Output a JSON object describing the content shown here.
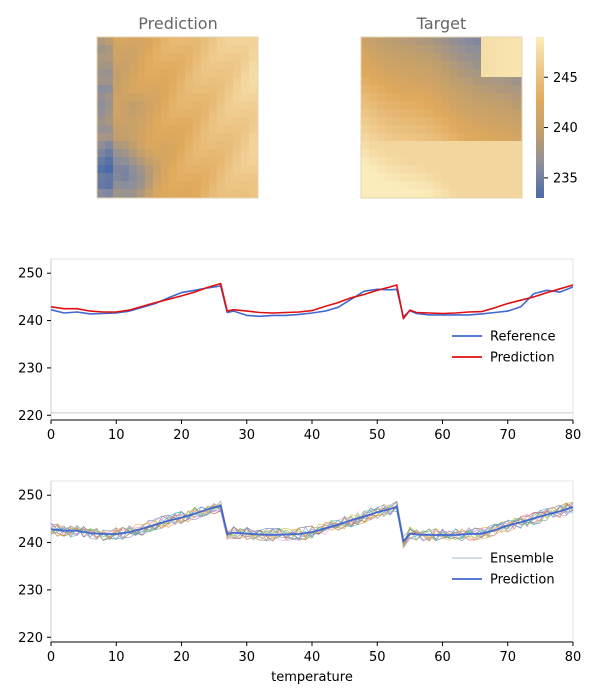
{
  "chart_data": [
    {
      "type": "heatmap",
      "title": "Prediction",
      "rows": 20,
      "cols": 20,
      "grid_dx": 8,
      "grid_dy": 8,
      "pattern": "prediction"
    },
    {
      "type": "heatmap",
      "title": "Target",
      "rows": 20,
      "cols": 20,
      "grid_dx": 8,
      "grid_dy": 8,
      "pattern": "target",
      "colorbar": {
        "vmin": 233,
        "vmax": 249,
        "ticks": [
          235,
          240,
          245
        ],
        "colors": [
          "#4a6aa8",
          "#8a8d9c",
          "#bf9e6e",
          "#e0a95c",
          "#eec88a",
          "#fbecbc"
        ]
      }
    },
    {
      "type": "line",
      "xlabel": "",
      "xlim": [
        0,
        80
      ],
      "ylim": [
        219,
        253
      ],
      "xticks": [
        0,
        10,
        20,
        30,
        40,
        50,
        60,
        70,
        80
      ],
      "yticks": [
        220,
        230,
        240,
        250
      ],
      "hline": 220.5,
      "legend_position": "lower-right",
      "series": [
        {
          "name": "Reference",
          "color": "#4169cf",
          "x": [
            0,
            2,
            4,
            6,
            8,
            10,
            12,
            14,
            16,
            18,
            20,
            22,
            24,
            26,
            27,
            28,
            30,
            32,
            34,
            36,
            38,
            40,
            42,
            44,
            46,
            48,
            50,
            52,
            53,
            54,
            55,
            56,
            58,
            60,
            62,
            64,
            66,
            68,
            70,
            72,
            74,
            76,
            78,
            80
          ],
          "y": [
            242.3,
            241.6,
            241.8,
            241.4,
            241.5,
            241.6,
            242.0,
            242.8,
            243.6,
            244.8,
            245.9,
            246.4,
            246.9,
            247.3,
            241.7,
            242.0,
            241.1,
            240.9,
            241.1,
            241.1,
            241.3,
            241.6,
            242.0,
            242.8,
            244.5,
            246.2,
            246.6,
            246.5,
            246.6,
            240.8,
            242.1,
            241.5,
            241.2,
            241.2,
            241.2,
            241.2,
            241.4,
            241.7,
            242.0,
            242.9,
            245.7,
            246.4,
            246.0,
            247.1
          ]
        },
        {
          "name": "Prediction",
          "color": "#e01010",
          "x": [
            0,
            2,
            4,
            6,
            8,
            10,
            12,
            14,
            16,
            18,
            20,
            22,
            24,
            26,
            27,
            28,
            30,
            32,
            34,
            36,
            38,
            40,
            42,
            44,
            46,
            48,
            50,
            52,
            53,
            54,
            55,
            56,
            58,
            60,
            62,
            64,
            66,
            68,
            70,
            72,
            74,
            76,
            78,
            80
          ],
          "y": [
            242.9,
            242.5,
            242.5,
            242.0,
            241.8,
            241.8,
            242.2,
            243.0,
            243.8,
            244.5,
            245.2,
            246.0,
            247.0,
            247.8,
            242.0,
            242.3,
            242.0,
            241.7,
            241.6,
            241.7,
            241.8,
            242.1,
            243.0,
            243.8,
            244.8,
            245.5,
            246.4,
            247.1,
            247.5,
            240.4,
            242.2,
            241.7,
            241.6,
            241.5,
            241.6,
            241.8,
            241.9,
            242.7,
            243.6,
            244.3,
            245.0,
            245.9,
            246.7,
            247.5
          ]
        }
      ]
    },
    {
      "type": "line",
      "xlabel": "temperature",
      "xlim": [
        0,
        80
      ],
      "ylim": [
        219,
        253
      ],
      "xticks": [
        0,
        10,
        20,
        30,
        40,
        50,
        60,
        70,
        80
      ],
      "yticks": [
        220,
        230,
        240,
        250
      ],
      "legend_position": "lower-right",
      "series": [
        {
          "name": "Ensemble",
          "color": "#8aa6b8",
          "members": 12,
          "spread": 1.4,
          "member_colors": [
            "#8aa6b8",
            "#e8a23c",
            "#5bb55b",
            "#d8544e",
            "#9a7ec8",
            "#8c6d62",
            "#e69ad6",
            "#9a9a9a",
            "#c2c23a",
            "#3cc2d2",
            "#6a8fd2",
            "#f0b070"
          ]
        },
        {
          "name": "Prediction",
          "color": "#4169cf",
          "x": [
            0,
            2,
            4,
            6,
            8,
            10,
            12,
            14,
            16,
            18,
            20,
            22,
            24,
            26,
            27,
            28,
            30,
            32,
            34,
            36,
            38,
            40,
            42,
            44,
            46,
            48,
            50,
            52,
            53,
            54,
            55,
            56,
            58,
            60,
            62,
            64,
            66,
            68,
            70,
            72,
            74,
            76,
            78,
            80
          ],
          "y": [
            242.8,
            242.5,
            242.5,
            242.0,
            241.8,
            241.8,
            242.2,
            242.9,
            243.8,
            244.6,
            245.3,
            246.1,
            247.0,
            247.8,
            241.8,
            242.1,
            241.9,
            241.7,
            241.6,
            241.7,
            241.8,
            242.2,
            243.0,
            243.8,
            244.7,
            245.5,
            246.4,
            247.1,
            247.5,
            240.2,
            241.9,
            241.7,
            241.6,
            241.6,
            241.6,
            241.8,
            241.9,
            242.6,
            243.6,
            244.3,
            245.1,
            245.9,
            246.6,
            247.5
          ]
        }
      ]
    }
  ]
}
